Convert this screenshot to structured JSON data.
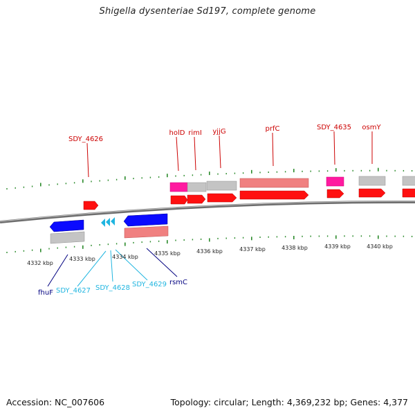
{
  "title": "Shigella dysenteriae Sd197, complete genome",
  "footer": {
    "accession": "Accession: NC_007606",
    "summary": "Topology: circular; Length: 4,369,232 bp; Genes: 4,377"
  },
  "colors": {
    "forward_cds": "#ff0000",
    "forward_gene": "#f08080",
    "reverse_cds": "#0000ff",
    "grey_feature": "#c0c0c0",
    "trna": "#ff1aa0",
    "tick": "#2a8a2a",
    "label_forward": "#cc0000",
    "label_reverse": "#000080",
    "label_cyan": "#1fb5e0",
    "backbone": "#808080"
  },
  "axis": {
    "unit": "kbp",
    "ticks": [
      "4332 kbp",
      "4333 kbp",
      "4334 kbp",
      "4335 kbp",
      "4336 kbp",
      "4337 kbp",
      "4338 kbp",
      "4339 kbp",
      "4340 kbp"
    ]
  },
  "labels": {
    "forward": [
      "SDY_4626",
      "holD",
      "rimI",
      "yjjG",
      "prfC",
      "SDY_4635",
      "osmY"
    ],
    "reverse": [
      "fhuF",
      "SDY_4627",
      "SDY_4628",
      "SDY_4629",
      "rsmC"
    ]
  }
}
